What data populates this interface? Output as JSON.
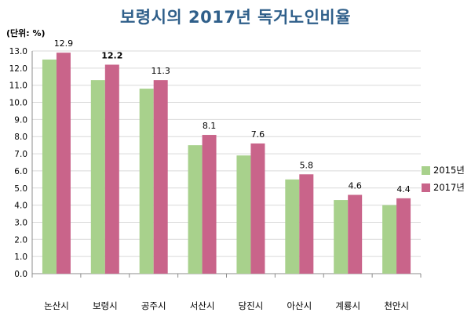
{
  "chart_data": {
    "type": "bar",
    "title": "보령시의 2017년 독거노인비율",
    "unit_label": "(단위: %)",
    "categories": [
      "논산시",
      "보령시",
      "공주시",
      "서산시",
      "당진시",
      "아산시",
      "계룡시",
      "천안시"
    ],
    "series": [
      {
        "name": "2015년",
        "color": "#a8d18c",
        "values": [
          12.5,
          11.3,
          10.8,
          7.5,
          6.9,
          5.5,
          4.3,
          4.0
        ]
      },
      {
        "name": "2017년",
        "color": "#c9648a",
        "values": [
          12.9,
          12.2,
          11.3,
          8.1,
          7.6,
          5.8,
          4.6,
          4.4
        ]
      }
    ],
    "data_labels": [
      "12.9",
      "12.2",
      "11.3",
      "8.1",
      "7.6",
      "5.8",
      "4.6",
      "4.4"
    ],
    "highlight_index": 1,
    "ylim": [
      0,
      13
    ],
    "yticks": [
      "0.0",
      "1.0",
      "2.0",
      "3.0",
      "4.0",
      "5.0",
      "6.0",
      "7.0",
      "8.0",
      "9.0",
      "10.0",
      "11.0",
      "12.0",
      "13.0"
    ],
    "grid": true,
    "legend_position": "right"
  }
}
